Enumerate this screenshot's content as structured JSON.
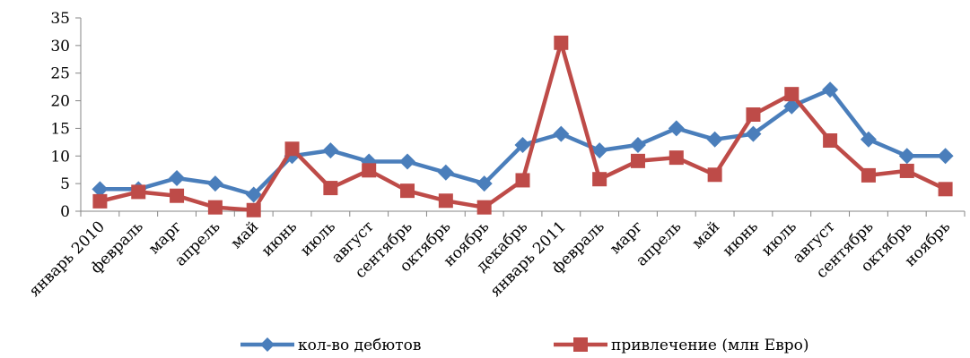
{
  "chart_data": {
    "type": "line",
    "categories": [
      "январь 2010",
      "февраль",
      "марг",
      "апрель",
      "май",
      "июнь",
      "июль",
      "август",
      "сентябрь",
      "октябрь",
      "ноябрь",
      "декабрь",
      "январь 2011",
      "февраль",
      "марг",
      "апрель",
      "май",
      "июнь",
      "июль",
      "август",
      "сентябрь",
      "октябрь",
      "ноябрь"
    ],
    "series": [
      {
        "name": "кол-во дебютов",
        "color": "#4a7ebb",
        "marker": "diamond",
        "values": [
          4,
          4,
          6,
          5,
          3,
          10,
          11,
          9,
          9,
          7,
          5,
          12,
          14,
          11,
          12,
          15,
          13,
          14,
          19,
          22,
          13,
          10,
          10
        ]
      },
      {
        "name": "привлечение (млн Евро)",
        "color": "#be4b48",
        "marker": "square",
        "values": [
          1.8,
          3.5,
          2.8,
          0.7,
          0.2,
          11.3,
          4.2,
          7.4,
          3.7,
          1.9,
          0.7,
          5.6,
          30.5,
          5.8,
          9.1,
          9.7,
          6.6,
          17.5,
          21.2,
          12.8,
          6.5,
          7.3,
          4.0
        ]
      }
    ],
    "y_ticks": [
      "0",
      "5",
      "10",
      "15",
      "20",
      "25",
      "30",
      "35"
    ],
    "ylim": [
      0,
      35
    ],
    "grid": false,
    "legend_position": "bottom",
    "title": "",
    "xlabel": "",
    "ylabel": ""
  }
}
